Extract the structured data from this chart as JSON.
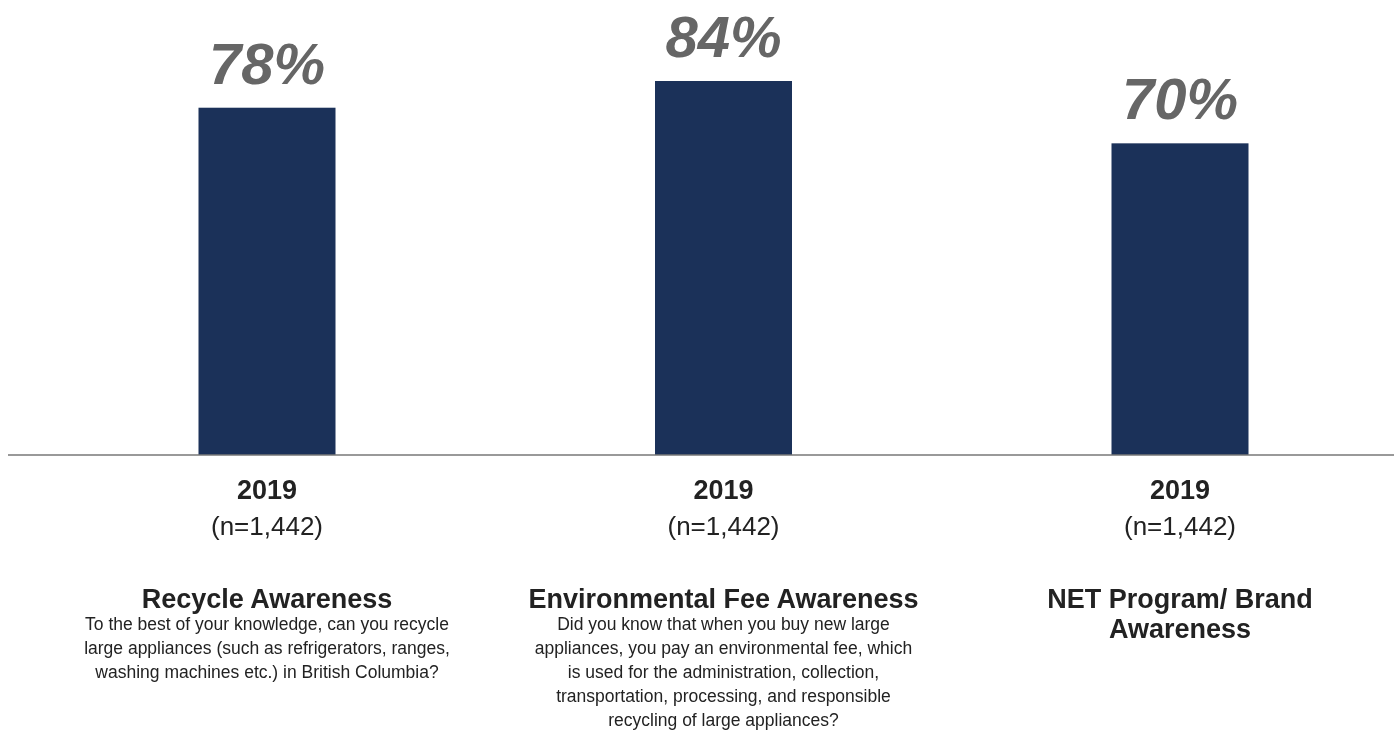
{
  "chart_data": {
    "type": "bar",
    "categories": [
      "Recycle Awareness",
      "Environmental Fee Awareness",
      "NET Program/ Brand Awareness"
    ],
    "values": [
      78,
      84,
      70
    ],
    "color": "#1b3159",
    "value_labels": [
      "78%",
      "84%",
      "70%"
    ],
    "annotations": [
      "2019",
      "(n=1,442)",
      "To the best of your knowledge, can you recycle large appliances (such as refrigerators, ranges, washing machines etc.) in British Columbia?",
      "2019",
      "(n=1,442)",
      "Did you know that when you buy new large appliances, you pay an environmental fee, which is used for the administration, collection, transportation, processing, and responsible recycling of large appliances?",
      "2019",
      "(n=1,442)"
    ]
  }
}
